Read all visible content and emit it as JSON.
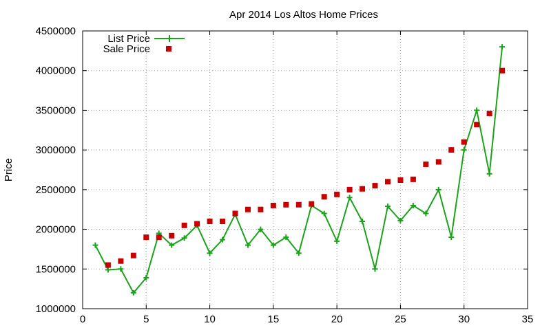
{
  "chart_data": {
    "type": "line",
    "title": "Apr 2014 Los Altos Home Prices",
    "xlabel": "",
    "ylabel": "Price",
    "xlim": [
      0,
      35
    ],
    "ylim": [
      1000000,
      4500000
    ],
    "xticks": [
      "0",
      "5",
      "10",
      "15",
      "20",
      "25",
      "30",
      "35"
    ],
    "yticks": [
      "1000000",
      "1500000",
      "2000000",
      "2500000",
      "3000000",
      "3500000",
      "4000000",
      "4500000"
    ],
    "grid": true,
    "legend_position": "top-left",
    "series": [
      {
        "name": "List Price",
        "style": "line-plus",
        "color": "#19a319",
        "x": [
          1,
          2,
          3,
          4,
          5,
          6,
          7,
          8,
          9,
          10,
          11,
          12,
          13,
          14,
          15,
          16,
          17,
          18,
          19,
          20,
          21,
          22,
          23,
          24,
          25,
          26,
          27,
          28,
          29,
          30,
          31,
          32,
          33
        ],
        "values": [
          1800000,
          1490000,
          1500000,
          1200000,
          1390000,
          1950000,
          1800000,
          1890000,
          2050000,
          1700000,
          1870000,
          2190000,
          1800000,
          2000000,
          1800000,
          1900000,
          1700000,
          2300000,
          2200000,
          1850000,
          2400000,
          2100000,
          1500000,
          2290000,
          2110000,
          2300000,
          2200000,
          2500000,
          1900000,
          3000000,
          3500000,
          2700000,
          4300000
        ]
      },
      {
        "name": "Sale Price",
        "style": "square",
        "color": "#c80000",
        "x": [
          2,
          3,
          4,
          5,
          6,
          7,
          8,
          9,
          10,
          11,
          12,
          13,
          14,
          15,
          16,
          17,
          18,
          19,
          20,
          21,
          22,
          23,
          24,
          25,
          26,
          27,
          28,
          29,
          30,
          31,
          32,
          33
        ],
        "values": [
          1550000,
          1600000,
          1670000,
          1900000,
          1900000,
          1920000,
          2050000,
          2070000,
          2100000,
          2100000,
          2200000,
          2250000,
          2250000,
          2300000,
          2310000,
          2310000,
          2320000,
          2410000,
          2440000,
          2500000,
          2510000,
          2550000,
          2600000,
          2620000,
          2630000,
          2820000,
          2850000,
          3000000,
          3100000,
          3320000,
          3460000,
          4000000
        ]
      }
    ]
  }
}
